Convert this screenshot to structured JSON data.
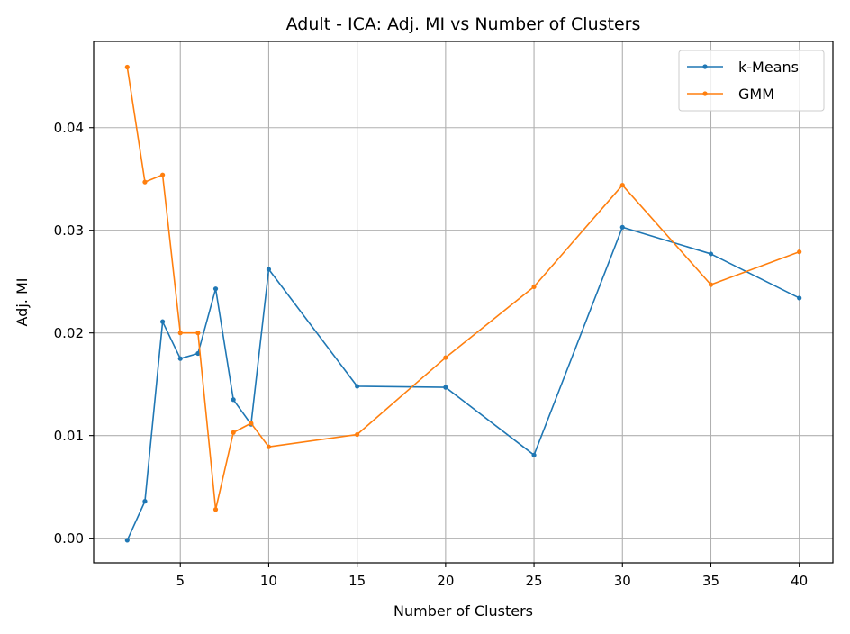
{
  "chart_data": {
    "type": "line",
    "title": "Adult - ICA: Adj. MI vs Number of Clusters",
    "xlabel": "Number of Clusters",
    "ylabel": "Adj. MI",
    "xlim": [
      0.1,
      41.9
    ],
    "ylim": [
      -0.0024,
      0.0484
    ],
    "xticks": [
      5,
      10,
      15,
      20,
      25,
      30,
      35,
      40
    ],
    "yticks": [
      0.0,
      0.01,
      0.02,
      0.03,
      0.04
    ],
    "ytick_labels": [
      "0.00",
      "0.01",
      "0.02",
      "0.03",
      "0.04"
    ],
    "grid": true,
    "legend_position": "top-right",
    "series": [
      {
        "name": "k-Means",
        "color": "#1f77b4",
        "x": [
          2,
          3,
          4,
          5,
          6,
          7,
          8,
          9,
          10,
          15,
          20,
          25,
          30,
          35,
          40
        ],
        "y": [
          -0.0002,
          0.0036,
          0.0211,
          0.0175,
          0.018,
          0.0243,
          0.0135,
          0.0111,
          0.0262,
          0.0148,
          0.0147,
          0.0081,
          0.0303,
          0.0277,
          0.0234
        ]
      },
      {
        "name": "GMM",
        "color": "#ff7f0e",
        "x": [
          2,
          3,
          4,
          5,
          6,
          7,
          8,
          9,
          10,
          15,
          20,
          25,
          30,
          35,
          40
        ],
        "y": [
          0.0459,
          0.0347,
          0.0354,
          0.02,
          0.02,
          0.0028,
          0.0103,
          0.0112,
          0.0089,
          0.0101,
          0.0176,
          0.0245,
          0.0344,
          0.0247,
          0.0279
        ]
      }
    ]
  }
}
